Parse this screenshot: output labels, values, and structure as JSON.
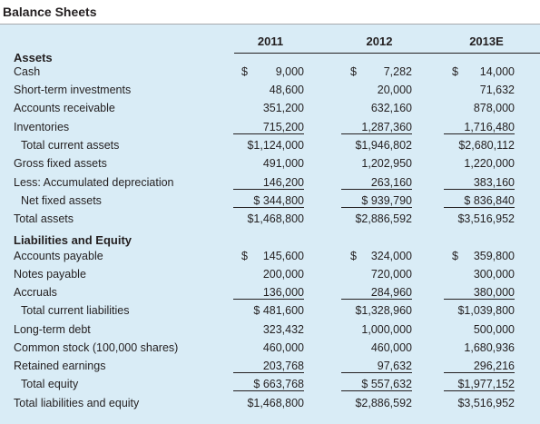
{
  "title": "Balance Sheets",
  "years": [
    "2011",
    "2012",
    "2013E"
  ],
  "sections": {
    "assets": "Assets",
    "liabilities": "Liabilities and Equity"
  },
  "rows": [
    {
      "label": "Cash",
      "values": [
        "9,000",
        "7,282",
        "14,000"
      ],
      "dollar": true
    },
    {
      "label": "Short-term investments",
      "values": [
        "48,600",
        "20,000",
        "71,632"
      ]
    },
    {
      "label": "Accounts receivable",
      "values": [
        "351,200",
        "632,160",
        "878,000"
      ]
    },
    {
      "label": "Inventories",
      "values": [
        "715,200",
        "1,287,360",
        "1,716,480"
      ]
    },
    {
      "label": "Total current assets",
      "values": [
        "$1,124,000",
        "$1,946,802",
        "$2,680,112"
      ]
    },
    {
      "label": "Gross fixed assets",
      "values": [
        "491,000",
        "1,202,950",
        "1,220,000"
      ]
    },
    {
      "label": "Less: Accumulated depreciation",
      "values": [
        "146,200",
        "263,160",
        "383,160"
      ]
    },
    {
      "label": "Net fixed assets",
      "values": [
        "$ 344,800",
        "$ 939,790",
        "$ 836,840"
      ]
    },
    {
      "label": "Total assets",
      "values": [
        "$1,468,800",
        "$2,886,592",
        "$3,516,952"
      ]
    },
    {
      "label": "Accounts payable",
      "values": [
        "145,600",
        "324,000",
        "359,800"
      ],
      "dollar": true
    },
    {
      "label": "Notes payable",
      "values": [
        "200,000",
        "720,000",
        "300,000"
      ]
    },
    {
      "label": "Accruals",
      "values": [
        "136,000",
        "284,960",
        "380,000"
      ]
    },
    {
      "label": "Total current liabilities",
      "values": [
        "$ 481,600",
        "$1,328,960",
        "$1,039,800"
      ]
    },
    {
      "label": "Long-term debt",
      "values": [
        "323,432",
        "1,000,000",
        "500,000"
      ]
    },
    {
      "label": "Common stock (100,000 shares)",
      "values": [
        "460,000",
        "460,000",
        "1,680,936"
      ]
    },
    {
      "label": "Retained earnings",
      "values": [
        "203,768",
        "97,632",
        "296,216"
      ]
    },
    {
      "label": "Total equity",
      "values": [
        "$ 663,768",
        "$ 557,632",
        "$1,977,152"
      ]
    },
    {
      "label": "Total liabilities and equity",
      "values": [
        "$1,468,800",
        "$2,886,592",
        "$3,516,952"
      ]
    }
  ],
  "dollar_sign": "$"
}
